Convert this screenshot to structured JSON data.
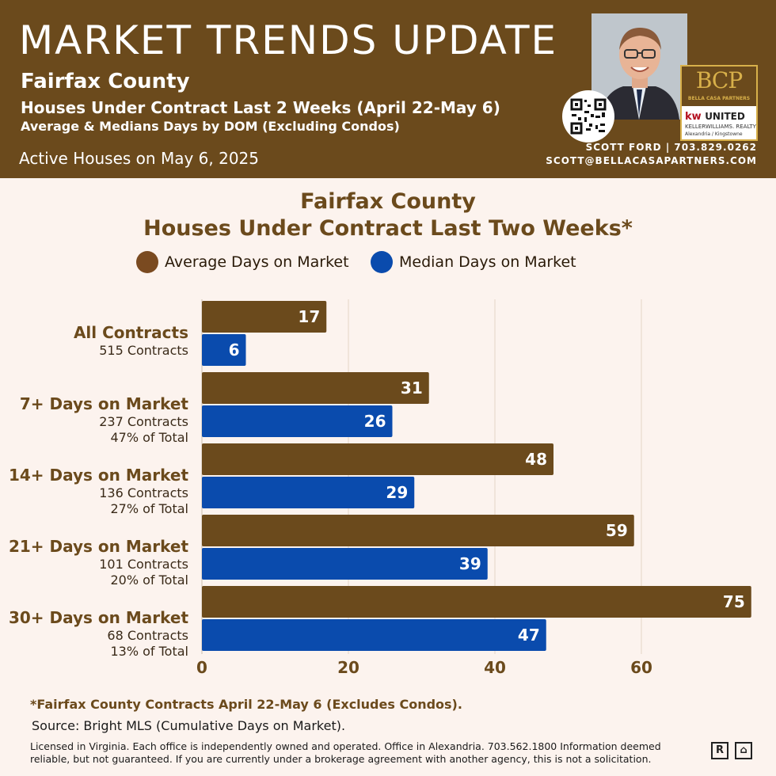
{
  "header": {
    "title": "MARKET TRENDS UPDATE",
    "county": "Fairfax County",
    "line1": "Houses Under Contract Last 2 Weeks (April 22-May 6)",
    "line2": "Average & Medians Days by DOM (Excluding Condos)",
    "active": "Active Houses on May 6, 2025",
    "contact_line1": "SCOTT FORD | 703.829.0262",
    "contact_line2": "SCOTT@BELLACASAPARTNERS.COM",
    "logo_bcp": "BCP",
    "logo_bcp_sub": "BELLA CASA PARTNERS",
    "logo_kw": "kw",
    "logo_kw_united": "UNITED",
    "logo_kw_line2": "KELLERWILLIAMS. REALTY",
    "logo_kw_line3": "Alexandria / Kingstowne",
    "colors": {
      "brown": "#6b4a1c",
      "blue": "#0a4bad",
      "background": "#fcf3ee",
      "gold": "#d8b04a"
    }
  },
  "chart_data": {
    "type": "bar",
    "orientation": "horizontal",
    "title_line1": "Fairfax County",
    "title_line2": "Houses Under Contract Last Two Weeks*",
    "categories": [
      {
        "name": "All Contracts",
        "sub1": "515 Contracts",
        "sub2": ""
      },
      {
        "name": "7+ Days on Market",
        "sub1": "237 Contracts",
        "sub2": "47% of Total"
      },
      {
        "name": "14+ Days on Market",
        "sub1": "136 Contracts",
        "sub2": "27% of Total"
      },
      {
        "name": "21+ Days on Market",
        "sub1": "101 Contracts",
        "sub2": "20% of Total"
      },
      {
        "name": "30+ Days on Market",
        "sub1": "68 Contracts",
        "sub2": "13% of Total"
      }
    ],
    "series": [
      {
        "name": "Average Days on Market",
        "color": "#6b4a1c",
        "values": [
          17,
          31,
          48,
          59,
          75
        ]
      },
      {
        "name": "Median Days on Market",
        "color": "#0a4bad",
        "values": [
          6,
          26,
          29,
          39,
          47
        ]
      }
    ],
    "x_ticks": [
      0,
      20,
      40,
      60
    ],
    "xlim": [
      0,
      75
    ],
    "grid": true,
    "legend_position": "top-center"
  },
  "footer": {
    "footnote": "*Fairfax County Contracts April 22-May 6 (Excludes Condos).",
    "source": "Source: Bright MLS (Cumulative Days on Market).",
    "legal": "Licensed in Virginia. Each office is independently owned and operated. Office in Alexandria. 703.562.1800  Information deemed reliable, but not guaranteed. If you are currently under a brokerage agreement with another agency, this is not a solicitation.",
    "realtor_icon": "R",
    "equal_housing_icon": "⌂"
  }
}
